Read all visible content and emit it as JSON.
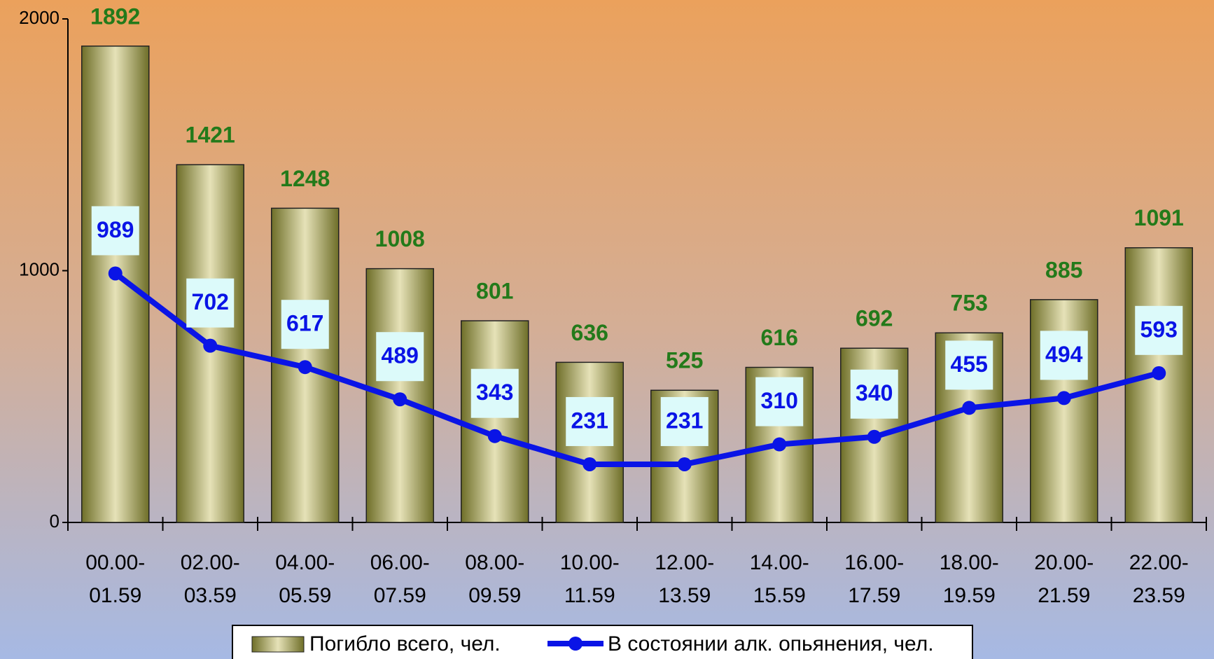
{
  "chart_data": {
    "type": "bar_line",
    "categories": [
      "00.00-01.59",
      "02.00-03.59",
      "04.00-05.59",
      "06.00-07.59",
      "08.00-09.59",
      "10.00-11.59",
      "12.00-13.59",
      "14.00-15.59",
      "16.00-17.59",
      "18.00-19.59",
      "20.00-21.59",
      "22.00-23.59"
    ],
    "series": [
      {
        "name": "Погибло всего, чел.",
        "type": "bar",
        "color": "#8a8a3a",
        "values": [
          1892,
          1421,
          1248,
          1008,
          801,
          636,
          525,
          616,
          692,
          753,
          885,
          1091
        ]
      },
      {
        "name": "В состоянии алк. опьянения, чел.",
        "type": "line",
        "color": "#0a14e6",
        "values": [
          989,
          702,
          617,
          489,
          343,
          231,
          231,
          310,
          340,
          455,
          494,
          593
        ]
      }
    ],
    "ylim": [
      0,
      2000
    ],
    "yticks": [
      0,
      1000,
      2000
    ],
    "legend": "bottom"
  }
}
